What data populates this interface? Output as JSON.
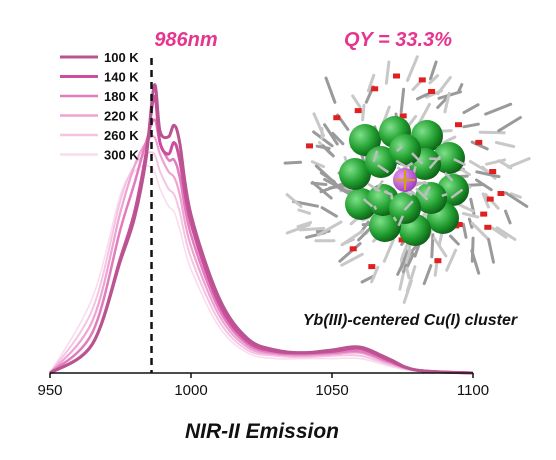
{
  "chart_data": {
    "type": "line",
    "xlabel": "NIR-II Emission",
    "ylabel": "",
    "xlim": [
      950,
      1100
    ],
    "x_ticks": [
      "950",
      "1000",
      "1050",
      "1100"
    ],
    "grid": false,
    "legend_placement": "top-left",
    "peak_annotation": "986nm",
    "peak_x": 986,
    "qy_annotation": "QY = 33.3%",
    "structure_caption": "Yb(III)-centered Cu(I) cluster",
    "series": [
      {
        "name": "100 K",
        "color": "#b8548f",
        "x": [
          950,
          965,
          975,
          980,
          984,
          987,
          989,
          992,
          994,
          996,
          1000,
          1010,
          1020,
          1030,
          1040,
          1050,
          1060,
          1070,
          1080,
          1100
        ],
        "y": [
          0,
          0.1,
          0.39,
          0.54,
          0.74,
          1.0,
          0.84,
          0.82,
          0.86,
          0.8,
          0.55,
          0.26,
          0.12,
          0.08,
          0.07,
          0.08,
          0.09,
          0.05,
          0.01,
          0
        ]
      },
      {
        "name": "140 K",
        "color": "#cc4e9e",
        "x": [
          950,
          965,
          975,
          980,
          984,
          987,
          989,
          992,
          994,
          996,
          1000,
          1010,
          1020,
          1030,
          1040,
          1050,
          1060,
          1070,
          1080,
          1100
        ],
        "y": [
          0,
          0.1,
          0.4,
          0.56,
          0.76,
          0.96,
          0.8,
          0.76,
          0.8,
          0.74,
          0.52,
          0.24,
          0.11,
          0.075,
          0.07,
          0.075,
          0.085,
          0.045,
          0.01,
          0
        ]
      },
      {
        "name": "180 K",
        "color": "#e27dbd",
        "x": [
          950,
          965,
          975,
          980,
          984,
          987,
          989,
          992,
          994,
          996,
          1000,
          1010,
          1020,
          1030,
          1040,
          1050,
          1060,
          1070,
          1080,
          1100
        ],
        "y": [
          0,
          0.14,
          0.5,
          0.66,
          0.8,
          0.88,
          0.8,
          0.74,
          0.74,
          0.68,
          0.48,
          0.22,
          0.1,
          0.07,
          0.065,
          0.07,
          0.075,
          0.04,
          0.01,
          0
        ]
      },
      {
        "name": "220 K",
        "color": "#eea3d2",
        "x": [
          950,
          965,
          975,
          980,
          984,
          987,
          989,
          992,
          994,
          996,
          1000,
          1010,
          1020,
          1030,
          1040,
          1050,
          1060,
          1070,
          1080,
          1100
        ],
        "y": [
          0,
          0.18,
          0.56,
          0.72,
          0.8,
          0.82,
          0.76,
          0.7,
          0.68,
          0.62,
          0.44,
          0.2,
          0.09,
          0.065,
          0.06,
          0.065,
          0.07,
          0.035,
          0.01,
          0
        ]
      },
      {
        "name": "260 K",
        "color": "#f5c4e3",
        "x": [
          950,
          965,
          975,
          980,
          984,
          987,
          989,
          992,
          994,
          996,
          1000,
          1010,
          1020,
          1030,
          1040,
          1050,
          1060,
          1070,
          1080,
          1100
        ],
        "y": [
          0,
          0.22,
          0.6,
          0.72,
          0.76,
          0.76,
          0.7,
          0.64,
          0.62,
          0.56,
          0.4,
          0.18,
          0.08,
          0.06,
          0.055,
          0.06,
          0.06,
          0.03,
          0.008,
          0
        ]
      },
      {
        "name": "300 K",
        "color": "#fadcee",
        "x": [
          950,
          965,
          975,
          980,
          984,
          987,
          989,
          992,
          994,
          996,
          1000,
          1010,
          1020,
          1030,
          1040,
          1050,
          1060,
          1070,
          1080,
          1100
        ],
        "y": [
          0,
          0.26,
          0.62,
          0.7,
          0.72,
          0.7,
          0.64,
          0.58,
          0.56,
          0.5,
          0.36,
          0.16,
          0.07,
          0.05,
          0.05,
          0.05,
          0.05,
          0.025,
          0.006,
          0
        ]
      }
    ]
  },
  "colors": {
    "annotation_pink": "#e5368f",
    "axis": "#111111",
    "cu_atom": "#22a030",
    "yb_atom": "#a23bc0",
    "oxygen": "#e02020",
    "bond": "#c8c8c8"
  },
  "inset": {
    "description_icon": "molecular-structure-graphic"
  }
}
